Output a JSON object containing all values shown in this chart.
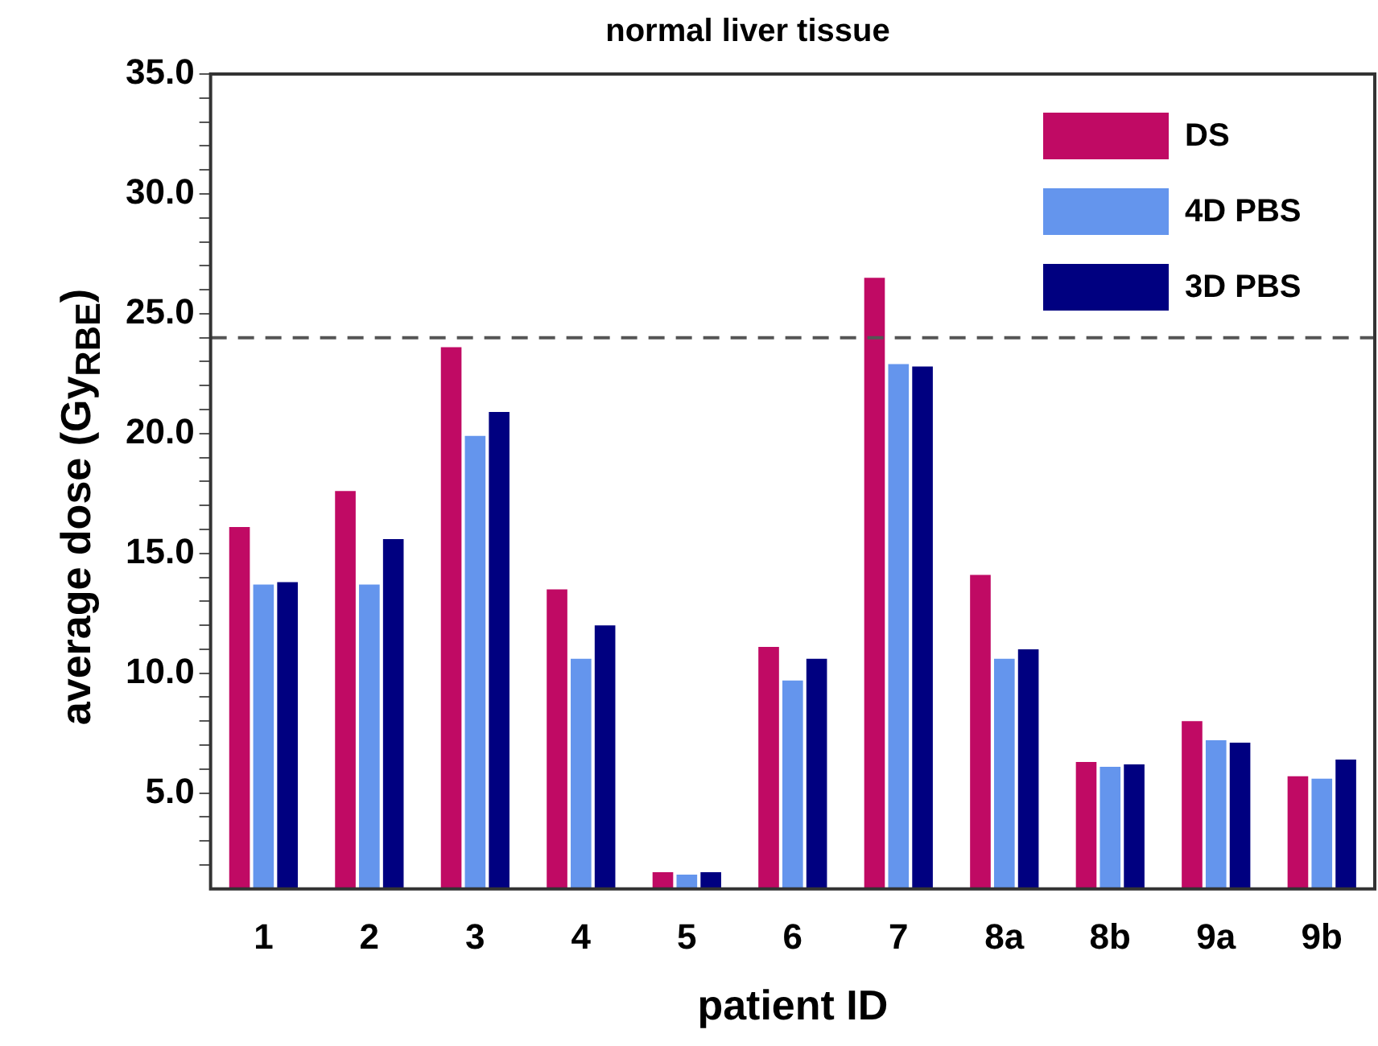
{
  "chart_data": {
    "type": "bar",
    "title": "normal liver tissue",
    "xlabel": "patient ID",
    "ylabel": "average dose (Gy$_{RBE}$)",
    "categories": [
      "1",
      "2",
      "3",
      "4",
      "5",
      "6",
      "7",
      "8a",
      "8b",
      "9a",
      "9b"
    ],
    "series": [
      {
        "name": "DS",
        "color": "#c00a64",
        "values": [
          16.1,
          17.6,
          23.6,
          13.5,
          1.7,
          11.1,
          26.5,
          14.1,
          6.3,
          8.0,
          5.7
        ]
      },
      {
        "name": "4D PBS",
        "color": "#6495ed",
        "values": [
          13.7,
          13.7,
          19.9,
          10.6,
          1.6,
          9.7,
          22.9,
          10.6,
          6.1,
          7.2,
          5.6
        ]
      },
      {
        "name": "3D PBS",
        "color": "#000080",
        "values": [
          13.8,
          15.6,
          20.9,
          12.0,
          1.7,
          10.6,
          22.8,
          11.0,
          6.2,
          7.1,
          6.4
        ]
      }
    ],
    "ylim": [
      1,
      35
    ],
    "yticks": [
      {
        "value": 2,
        "label": null
      },
      {
        "value": 3,
        "label": null
      },
      {
        "value": 4,
        "label": null
      },
      {
        "value": 5,
        "label": "5.0"
      },
      {
        "value": 6,
        "label": null
      },
      {
        "value": 7,
        "label": null
      },
      {
        "value": 8,
        "label": null
      },
      {
        "value": 9,
        "label": null
      },
      {
        "value": 10,
        "label": "10.0"
      },
      {
        "value": 11,
        "label": null
      },
      {
        "value": 12,
        "label": null
      },
      {
        "value": 13,
        "label": null
      },
      {
        "value": 14,
        "label": null
      },
      {
        "value": 15,
        "label": "15.0"
      },
      {
        "value": 16,
        "label": null
      },
      {
        "value": 17,
        "label": null
      },
      {
        "value": 18,
        "label": null
      },
      {
        "value": 19,
        "label": null
      },
      {
        "value": 20,
        "label": "20.0"
      },
      {
        "value": 21,
        "label": null
      },
      {
        "value": 22,
        "label": null
      },
      {
        "value": 23,
        "label": null
      },
      {
        "value": 24,
        "label": null
      },
      {
        "value": 25,
        "label": "25.0"
      },
      {
        "value": 26,
        "label": null
      },
      {
        "value": 27,
        "label": null
      },
      {
        "value": 28,
        "label": null
      },
      {
        "value": 29,
        "label": null
      },
      {
        "value": 30,
        "label": "30.0"
      },
      {
        "value": 31,
        "label": null
      },
      {
        "value": 32,
        "label": null
      },
      {
        "value": 33,
        "label": null
      },
      {
        "value": 34,
        "label": null
      },
      {
        "value": 35,
        "label": "35.0"
      }
    ],
    "ref_lines": [
      {
        "axis": "y",
        "value": 24,
        "color": "#555555",
        "line_style": "dashed"
      }
    ],
    "legend": "top right"
  }
}
